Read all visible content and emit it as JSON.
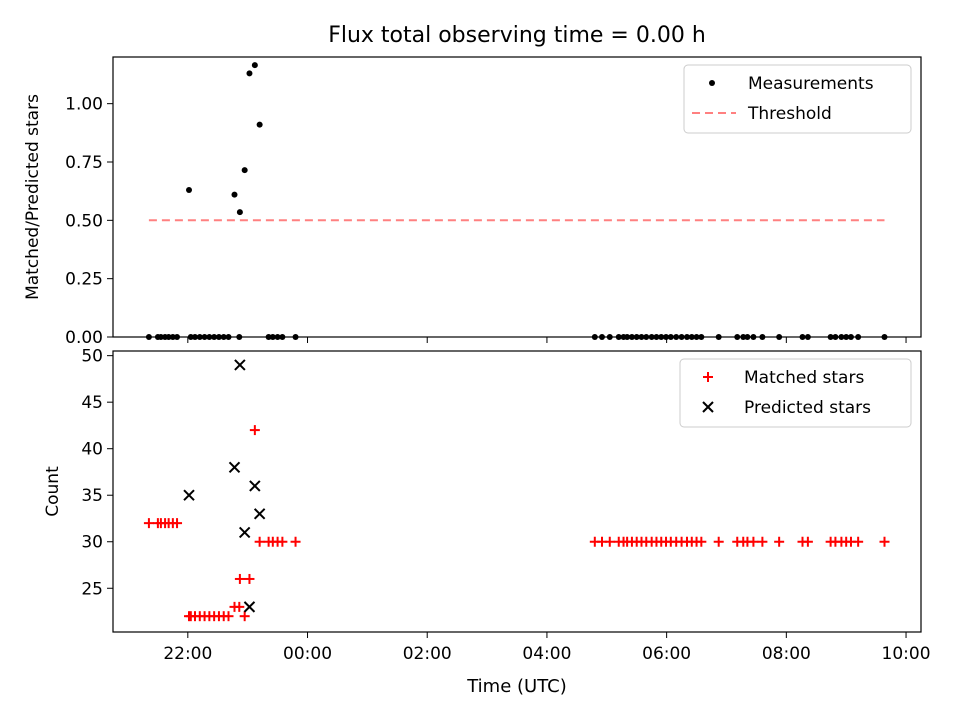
{
  "chart_data": {
    "type": "scatter",
    "title": "Flux total observing time = 0.00 h",
    "xlabel": "Time (UTC)",
    "x_unit": "hours relative to 00:00 UTC",
    "xlim": [
      -3.25,
      10.25
    ],
    "xticks": [
      -2,
      0,
      2,
      4,
      6,
      8,
      10
    ],
    "xtick_labels": [
      "22:00",
      "00:00",
      "02:00",
      "04:00",
      "06:00",
      "08:00",
      "10:00"
    ],
    "panels": [
      {
        "name": "ratio",
        "ylabel": "Matched/Predicted stars",
        "ylim": [
          0,
          1.2
        ],
        "yticks": [
          0,
          0.25,
          0.5,
          0.75,
          1.0
        ],
        "ytick_labels": [
          "0.00",
          "0.25",
          "0.50",
          "0.75",
          "1.00"
        ],
        "legend_position": "top-right",
        "series": [
          {
            "name": "Measurements",
            "marker": "dot",
            "color": "#000000",
            "points": [
              [
                -2.65,
                0
              ],
              [
                -2.5,
                0
              ],
              [
                -2.45,
                0
              ],
              [
                -2.38,
                0
              ],
              [
                -2.32,
                0
              ],
              [
                -2.25,
                0
              ],
              [
                -2.18,
                0
              ],
              [
                -1.98,
                0.63
              ],
              [
                -1.95,
                0
              ],
              [
                -1.88,
                0
              ],
              [
                -1.8,
                0
              ],
              [
                -1.72,
                0
              ],
              [
                -1.64,
                0
              ],
              [
                -1.56,
                0
              ],
              [
                -1.48,
                0
              ],
              [
                -1.4,
                0
              ],
              [
                -1.32,
                0
              ],
              [
                -1.22,
                0.61
              ],
              [
                -1.14,
                0
              ],
              [
                -1.13,
                0.535
              ],
              [
                -1.05,
                0.715
              ],
              [
                -0.97,
                1.13
              ],
              [
                -0.88,
                1.165
              ],
              [
                -0.8,
                0.91
              ],
              [
                -0.65,
                0
              ],
              [
                -0.58,
                0
              ],
              [
                -0.5,
                0
              ],
              [
                -0.42,
                0
              ],
              [
                -0.2,
                0
              ],
              [
                4.8,
                0
              ],
              [
                4.92,
                0
              ],
              [
                5.05,
                0
              ],
              [
                5.2,
                0
              ],
              [
                5.28,
                0
              ],
              [
                5.34,
                0
              ],
              [
                5.42,
                0
              ],
              [
                5.5,
                0
              ],
              [
                5.58,
                0
              ],
              [
                5.66,
                0
              ],
              [
                5.75,
                0
              ],
              [
                5.83,
                0
              ],
              [
                5.91,
                0
              ],
              [
                5.99,
                0
              ],
              [
                6.07,
                0
              ],
              [
                6.16,
                0
              ],
              [
                6.25,
                0
              ],
              [
                6.34,
                0
              ],
              [
                6.42,
                0
              ],
              [
                6.5,
                0
              ],
              [
                6.58,
                0
              ],
              [
                6.87,
                0
              ],
              [
                7.18,
                0
              ],
              [
                7.28,
                0
              ],
              [
                7.35,
                0
              ],
              [
                7.45,
                0
              ],
              [
                7.6,
                0
              ],
              [
                7.88,
                0
              ],
              [
                8.27,
                0
              ],
              [
                8.36,
                0
              ],
              [
                8.74,
                0
              ],
              [
                8.82,
                0
              ],
              [
                8.92,
                0
              ],
              [
                9.0,
                0
              ],
              [
                9.08,
                0
              ],
              [
                9.2,
                0
              ],
              [
                9.64,
                0
              ]
            ]
          },
          {
            "name": "Threshold",
            "style": "dashed-line",
            "color": "#ff8080",
            "points": [
              [
                -2.65,
                0.5
              ],
              [
                9.64,
                0.5
              ]
            ]
          }
        ]
      },
      {
        "name": "count",
        "ylabel": "Count",
        "ylim": [
          20.3,
          50.5
        ],
        "yticks": [
          25,
          30,
          35,
          40,
          45,
          50
        ],
        "ytick_labels": [
          "25",
          "30",
          "35",
          "40",
          "45",
          "50"
        ],
        "legend_position": "top-right",
        "series": [
          {
            "name": "Matched stars",
            "marker": "plus",
            "color": "#ff0000",
            "points": [
              [
                -2.65,
                32
              ],
              [
                -2.5,
                32
              ],
              [
                -2.45,
                32
              ],
              [
                -2.38,
                32
              ],
              [
                -2.32,
                32
              ],
              [
                -2.25,
                32
              ],
              [
                -2.18,
                32
              ],
              [
                -1.98,
                22
              ],
              [
                -1.95,
                22
              ],
              [
                -1.88,
                22
              ],
              [
                -1.8,
                22
              ],
              [
                -1.72,
                22
              ],
              [
                -1.64,
                22
              ],
              [
                -1.56,
                22
              ],
              [
                -1.48,
                22
              ],
              [
                -1.4,
                22
              ],
              [
                -1.32,
                22
              ],
              [
                -1.22,
                23
              ],
              [
                -1.14,
                23
              ],
              [
                -1.13,
                26
              ],
              [
                -1.05,
                22
              ],
              [
                -0.97,
                26
              ],
              [
                -0.88,
                42
              ],
              [
                -0.8,
                30
              ],
              [
                -0.65,
                30
              ],
              [
                -0.58,
                30
              ],
              [
                -0.5,
                30
              ],
              [
                -0.42,
                30
              ],
              [
                -0.2,
                30
              ],
              [
                4.8,
                30
              ],
              [
                4.92,
                30
              ],
              [
                5.05,
                30
              ],
              [
                5.2,
                30
              ],
              [
                5.28,
                30
              ],
              [
                5.34,
                30
              ],
              [
                5.42,
                30
              ],
              [
                5.5,
                30
              ],
              [
                5.58,
                30
              ],
              [
                5.66,
                30
              ],
              [
                5.75,
                30
              ],
              [
                5.83,
                30
              ],
              [
                5.91,
                30
              ],
              [
                5.99,
                30
              ],
              [
                6.07,
                30
              ],
              [
                6.16,
                30
              ],
              [
                6.25,
                30
              ],
              [
                6.34,
                30
              ],
              [
                6.42,
                30
              ],
              [
                6.5,
                30
              ],
              [
                6.58,
                30
              ],
              [
                6.87,
                30
              ],
              [
                7.18,
                30
              ],
              [
                7.28,
                30
              ],
              [
                7.35,
                30
              ],
              [
                7.45,
                30
              ],
              [
                7.6,
                30
              ],
              [
                7.88,
                30
              ],
              [
                8.27,
                30
              ],
              [
                8.36,
                30
              ],
              [
                8.74,
                30
              ],
              [
                8.82,
                30
              ],
              [
                8.92,
                30
              ],
              [
                9.0,
                30
              ],
              [
                9.08,
                30
              ],
              [
                9.2,
                30
              ],
              [
                9.64,
                30
              ]
            ]
          },
          {
            "name": "Predicted stars",
            "marker": "x",
            "color": "#000000",
            "points": [
              [
                -1.98,
                35
              ],
              [
                -1.22,
                38
              ],
              [
                -1.05,
                31
              ],
              [
                -0.97,
                23
              ],
              [
                -1.13,
                49
              ],
              [
                -0.88,
                36
              ],
              [
                -0.8,
                33
              ]
            ]
          }
        ]
      }
    ]
  }
}
